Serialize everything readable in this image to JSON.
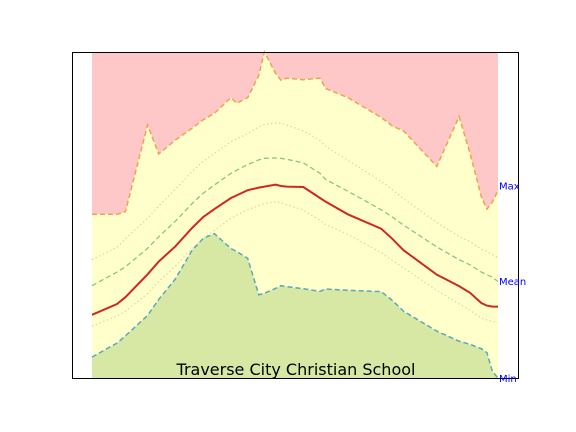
{
  "chart_data": {
    "type": "area",
    "title": "Traverse City Christian School",
    "xlabel": "",
    "ylabel": "",
    "grid": false,
    "xlim": [
      0,
      73
    ],
    "ylim": [
      0,
      1
    ],
    "colors": {
      "above_band": "#ffc8c8",
      "mid_band": "#ffffcc",
      "below_band": "#d6e8a4",
      "max_line": "#f5a04a",
      "upper_dashed": "#88c878",
      "upper_dotted": "#d9d8a0",
      "mean_line": "#d02820",
      "lower_dotted": "#d9d8a0",
      "min_line": "#5aa8b8",
      "right_labels": "#0000ff"
    },
    "right_labels": [
      {
        "text": "Max",
        "y": 0.59
      },
      {
        "text": "Mean",
        "y": 0.297
      },
      {
        "text": "Min",
        "y": 0.0
      }
    ],
    "x": [
      0,
      4.5,
      6,
      10,
      12,
      15,
      18,
      20,
      22,
      25,
      26,
      28,
      30,
      31,
      33,
      34,
      35,
      38,
      41,
      42,
      46,
      52,
      54,
      56,
      62,
      66,
      68,
      70,
      71,
      72,
      73
    ],
    "series": [
      {
        "id": "max",
        "style": "solid",
        "values": [
          0.502,
          0.502,
          0.51,
          0.776,
          0.687,
          0.73,
          0.766,
          0.792,
          0.812,
          0.86,
          0.843,
          0.86,
          0.928,
          1.0,
          0.935,
          0.913,
          0.92,
          0.915,
          0.92,
          0.888,
          0.86,
          0.799,
          0.773,
          0.758,
          0.649,
          0.802,
          0.687,
          0.556,
          0.518,
          0.54,
          0.575
        ]
      },
      {
        "id": "upper_dashed",
        "style": "dashed",
        "values": [
          0.283,
          0.325,
          0.341,
          0.398,
          0.433,
          0.481,
          0.535,
          0.567,
          0.592,
          0.628,
          0.637,
          0.655,
          0.669,
          0.674,
          0.675,
          0.674,
          0.671,
          0.66,
          0.628,
          0.609,
          0.573,
          0.516,
          0.494,
          0.469,
          0.402,
          0.363,
          0.347,
          0.325,
          0.317,
          0.309,
          0.296
        ]
      },
      {
        "id": "upper_dotted",
        "style": "dotted",
        "values": [
          0.363,
          0.401,
          0.427,
          0.49,
          0.528,
          0.579,
          0.633,
          0.665,
          0.689,
          0.725,
          0.733,
          0.75,
          0.77,
          0.778,
          0.782,
          0.781,
          0.776,
          0.758,
          0.729,
          0.711,
          0.668,
          0.603,
          0.578,
          0.55,
          0.477,
          0.434,
          0.418,
          0.395,
          0.388,
          0.378,
          0.37
        ]
      },
      {
        "id": "mean",
        "style": "solid",
        "values": [
          0.194,
          0.227,
          0.248,
          0.318,
          0.357,
          0.404,
          0.46,
          0.494,
          0.518,
          0.552,
          0.56,
          0.576,
          0.584,
          0.587,
          0.593,
          0.589,
          0.587,
          0.586,
          0.552,
          0.541,
          0.502,
          0.458,
          0.427,
          0.392,
          0.317,
          0.282,
          0.261,
          0.23,
          0.222,
          0.219,
          0.219
        ]
      },
      {
        "id": "lower_dotted",
        "style": "dotted",
        "values": [
          0.159,
          0.19,
          0.205,
          0.259,
          0.296,
          0.344,
          0.398,
          0.428,
          0.453,
          0.49,
          0.499,
          0.516,
          0.529,
          0.535,
          0.541,
          0.537,
          0.532,
          0.515,
          0.483,
          0.471,
          0.441,
          0.384,
          0.361,
          0.338,
          0.269,
          0.227,
          0.208,
          0.184,
          0.178,
          0.174,
          0.17
        ]
      },
      {
        "id": "min",
        "style": "dashed",
        "values": [
          0.064,
          0.107,
          0.129,
          0.192,
          0.241,
          0.304,
          0.392,
          0.428,
          0.443,
          0.397,
          0.388,
          0.367,
          0.255,
          0.26,
          0.275,
          0.283,
          0.28,
          0.274,
          0.266,
          0.273,
          0.269,
          0.265,
          0.238,
          0.205,
          0.144,
          0.113,
          0.103,
          0.09,
          0.078,
          0.02,
          0.0
        ]
      }
    ]
  }
}
